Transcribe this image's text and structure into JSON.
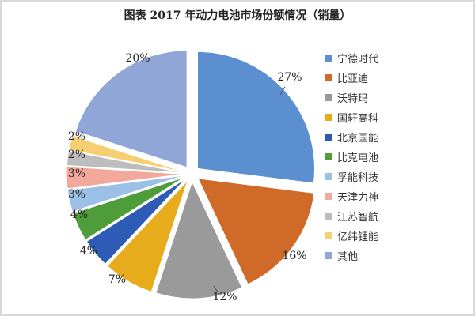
{
  "chart_data": {
    "type": "pie",
    "title": "图表  2017 年动力电池市场份额情况（销量）",
    "legend_position": "right",
    "slices": [
      {
        "label": "宁德时代",
        "value": 27,
        "value_label": "27%",
        "color": "#5b8fd0",
        "exploded": true
      },
      {
        "label": "比亚迪",
        "value": 16,
        "value_label": "16%",
        "color": "#d06a29",
        "exploded": true
      },
      {
        "label": "沃特玛",
        "value": 12,
        "value_label": "12%",
        "color": "#9a9a9a",
        "exploded": true
      },
      {
        "label": "国轩高科",
        "value": 7,
        "value_label": "7%",
        "color": "#e6ac1c",
        "exploded": true
      },
      {
        "label": "北京国能",
        "value": 4,
        "value_label": "4%",
        "color": "#2e5bb5",
        "exploded": true
      },
      {
        "label": "比克电池",
        "value": 4,
        "value_label": "4%",
        "color": "#4f9d3a",
        "exploded": true
      },
      {
        "label": "孚能科技",
        "value": 3,
        "value_label": "3%",
        "color": "#9cc0e6",
        "exploded": true
      },
      {
        "label": "天津力神",
        "value": 3,
        "value_label": "3%",
        "color": "#f2a89a",
        "exploded": true
      },
      {
        "label": "江苏智航",
        "value": 2,
        "value_label": "2%",
        "color": "#bdbdbd",
        "exploded": true
      },
      {
        "label": "亿纬锂能",
        "value": 2,
        "value_label": "2%",
        "color": "#f7cf73",
        "exploded": true
      },
      {
        "label": "其他",
        "value": 20,
        "value_label": "20%",
        "color": "#8fa6d6",
        "exploded": true
      }
    ]
  }
}
